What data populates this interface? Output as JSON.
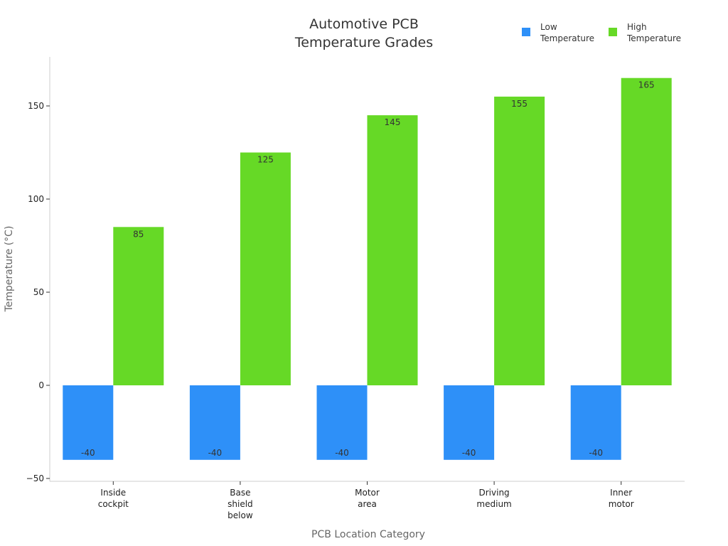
{
  "chart_data": {
    "type": "bar",
    "title": [
      "Automotive PCB",
      "Temperature Grades"
    ],
    "xlabel": "PCB Location Category",
    "ylabel": "Temperature (°C)",
    "ylim": [
      -50,
      177
    ],
    "yticks": [
      -50,
      0,
      50,
      100,
      150
    ],
    "categories": [
      [
        "Inside",
        "cockpit"
      ],
      [
        "Base",
        "shield",
        "below"
      ],
      [
        "Motor",
        "area"
      ],
      [
        "Driving",
        "medium"
      ],
      [
        "Inner",
        "motor"
      ]
    ],
    "series": [
      {
        "name": [
          "Low",
          "Temperature"
        ],
        "color": "#2e90f8",
        "values": [
          -40,
          -40,
          -40,
          -40,
          -40
        ]
      },
      {
        "name": [
          "High",
          "Temperature"
        ],
        "color": "#66d926",
        "values": [
          85,
          125,
          145,
          155,
          165
        ]
      }
    ],
    "legend_position": "top-right",
    "grid": false
  }
}
